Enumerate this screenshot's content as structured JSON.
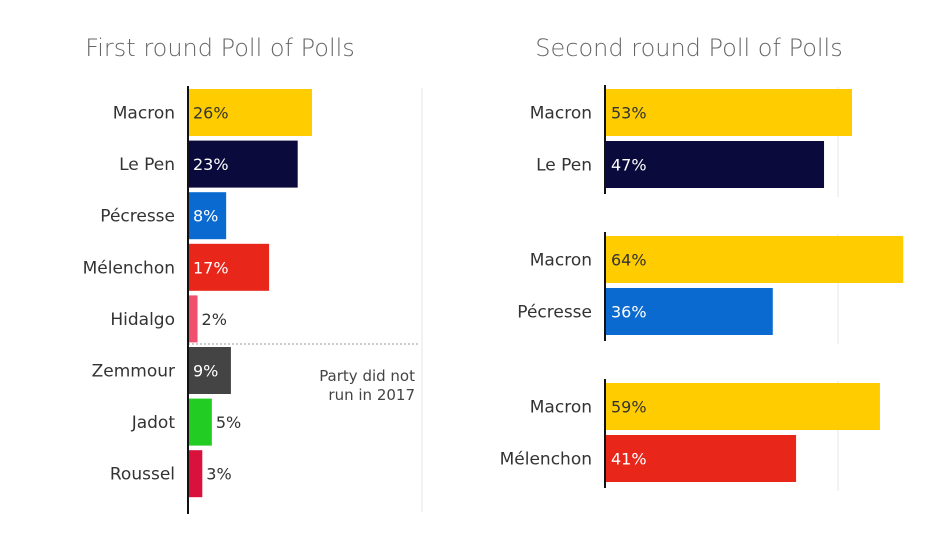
{
  "chart_data": [
    {
      "type": "bar",
      "orientation": "horizontal",
      "title": "First round Poll of Polls",
      "categories": [
        "Macron",
        "Le Pen",
        "Pécresse",
        "Mélenchon",
        "Hidalgo",
        "Zemmour",
        "Jadot",
        "Roussel"
      ],
      "values": [
        26,
        23,
        8,
        17,
        2,
        9,
        5,
        3
      ],
      "value_labels": [
        "26%",
        "23%",
        "8%",
        "17%",
        "2%",
        "9%",
        "5%",
        "3%"
      ],
      "colors": [
        "#ffcc00",
        "#0a0a3c",
        "#0a6ad0",
        "#e8261a",
        "#f0506e",
        "#444444",
        "#22cc22",
        "#d8123c"
      ],
      "label_colors": [
        "#333333",
        "#ffffff",
        "#ffffff",
        "#ffffff",
        "#333333",
        "#ffffff",
        "#333333",
        "#333333"
      ],
      "annotation": [
        "Party did not",
        "run in 2017"
      ],
      "xlim": [
        0,
        30
      ]
    },
    {
      "type": "bar",
      "orientation": "horizontal",
      "title": "Second round Poll of Polls",
      "xlim": [
        0,
        70
      ],
      "groups": [
        {
          "categories": [
            "Macron",
            "Le Pen"
          ],
          "values": [
            53,
            47
          ],
          "value_labels": [
            "53%",
            "47%"
          ],
          "colors": [
            "#ffcc00",
            "#0a0a3c"
          ],
          "label_colors": [
            "#333333",
            "#ffffff"
          ]
        },
        {
          "categories": [
            "Macron",
            "Pécresse"
          ],
          "values": [
            64,
            36
          ],
          "value_labels": [
            "64%",
            "36%"
          ],
          "colors": [
            "#ffcc00",
            "#0a6ad0"
          ],
          "label_colors": [
            "#333333",
            "#ffffff"
          ]
        },
        {
          "categories": [
            "Macron",
            "Mélenchon"
          ],
          "values": [
            59,
            41
          ],
          "value_labels": [
            "59%",
            "41%"
          ],
          "colors": [
            "#ffcc00",
            "#e8261a"
          ],
          "label_colors": [
            "#333333",
            "#ffffff"
          ]
        }
      ]
    }
  ]
}
